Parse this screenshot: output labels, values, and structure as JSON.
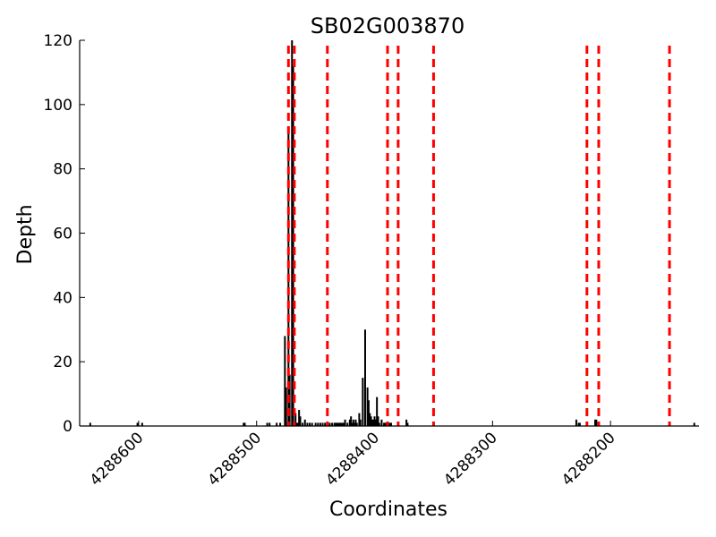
{
  "chart_data": {
    "type": "bar",
    "title": "SB02G003870",
    "xlabel": "Coordinates",
    "ylabel": "Depth",
    "xlim": [
      4288650,
      4288125
    ],
    "ylim": [
      0,
      120
    ],
    "x_ticks": [
      4288600,
      4288500,
      4288400,
      4288300,
      4288200
    ],
    "x_tick_labels": [
      "4288600",
      "4288500",
      "4288400",
      "4288300",
      "4288200"
    ],
    "y_ticks": [
      0,
      20,
      40,
      60,
      80,
      100,
      120
    ],
    "y_tick_labels": [
      "0",
      "20",
      "40",
      "60",
      "80",
      "100",
      "120"
    ],
    "bar_color": "#000000",
    "line_color": "#ff0000",
    "x_reversed": true,
    "grid": false,
    "series": [
      {
        "type": "bar",
        "x": [
          4288641,
          4288601,
          4288597,
          4288511,
          4288510,
          4288491,
          4288489,
          4288483,
          4288480,
          4288476,
          4288475,
          4288473,
          4288472,
          4288470,
          4288469,
          4288467,
          4288466,
          4288465,
          4288464,
          4288463,
          4288461,
          4288459,
          4288457,
          4288455,
          4288453,
          4288450,
          4288448,
          4288446,
          4288444,
          4288442,
          4288440,
          4288438,
          4288436,
          4288434,
          4288433,
          4288432,
          4288431,
          4288430,
          4288429,
          4288428,
          4288427,
          4288426,
          4288425,
          4288423,
          4288421,
          4288420,
          4288419,
          4288418,
          4288417,
          4288416,
          4288415,
          4288413,
          4288412,
          4288410,
          4288408,
          4288406,
          4288405,
          4288404,
          4288403,
          4288402,
          4288401,
          4288400,
          4288399,
          4288398,
          4288397,
          4288396,
          4288394,
          4288392,
          4288391,
          4288390,
          4288388,
          4288387,
          4288386,
          4288373,
          4288372,
          4288229,
          4288227,
          4288226,
          4288213,
          4288212,
          4288129
        ],
        "values": [
          1,
          1,
          1,
          1,
          1,
          1,
          1,
          1,
          1,
          28,
          12,
          91,
          16,
          120,
          112,
          4,
          1,
          1,
          5,
          3,
          1,
          2,
          1,
          1,
          1,
          1,
          1,
          1,
          1,
          1,
          1,
          1,
          1,
          1,
          1,
          1,
          1,
          1,
          1,
          1,
          1,
          1,
          2,
          1,
          2,
          3,
          1,
          2,
          1,
          2,
          1,
          4,
          2,
          15,
          30,
          12,
          8,
          4,
          3,
          2,
          2,
          3,
          2,
          9,
          3,
          1,
          2,
          1,
          1,
          1,
          1,
          1,
          1,
          2,
          1,
          2,
          1,
          1,
          2,
          2,
          1
        ]
      },
      {
        "type": "vlines",
        "x": [
          4288473,
          4288468,
          4288440,
          4288389,
          4288380,
          4288350,
          4288220,
          4288210,
          4288150
        ]
      }
    ]
  }
}
